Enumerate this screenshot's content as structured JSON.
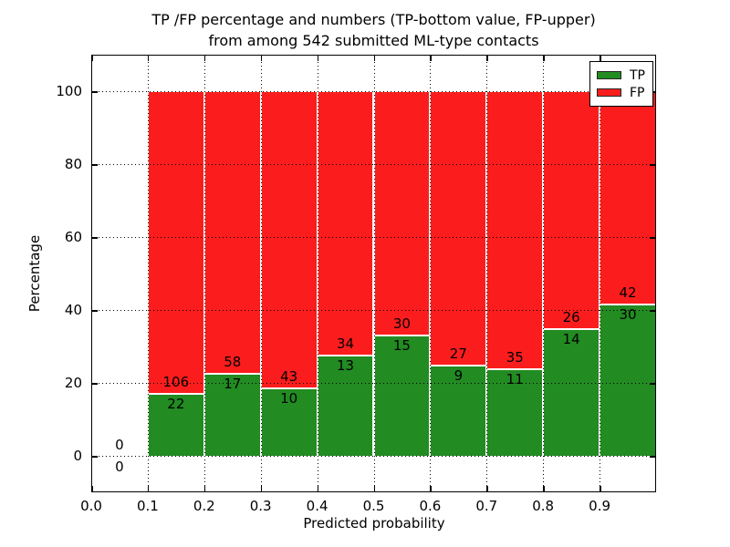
{
  "title": {
    "line1": "TP /FP percentage and numbers (TP-bottom value, FP-upper)",
    "line2": "from among 542 submitted ML-type contacts"
  },
  "axes": {
    "x_label": "Predicted probability",
    "y_label": "Percentage",
    "x_tick_labels": [
      "0.0",
      "0.1",
      "0.2",
      "0.3",
      "0.4",
      "0.5",
      "0.6",
      "0.7",
      "0.8",
      "0.9"
    ],
    "x_tick_values": [
      0.0,
      0.1,
      0.2,
      0.3,
      0.4,
      0.5,
      0.6,
      0.7,
      0.8,
      0.9
    ],
    "y_tick_labels": [
      "0",
      "20",
      "40",
      "60",
      "80",
      "100"
    ],
    "y_tick_values": [
      0,
      20,
      40,
      60,
      80,
      100
    ]
  },
  "legend": {
    "position": "top-right",
    "items": [
      {
        "label": "TP",
        "color": "#228b22"
      },
      {
        "label": "FP",
        "color": "#fb1d1d"
      }
    ]
  },
  "colors": {
    "tp": "#228b22",
    "fp": "#fb1d1d",
    "bar_edge": "#ffffff",
    "grid": "#000000",
    "text": "#000000"
  },
  "chart_data": {
    "type": "bar",
    "stacked": true,
    "normalized_to": 100,
    "title": "TP /FP percentage and numbers (TP-bottom value, FP-upper) from among 542 submitted ML-type contacts",
    "xlabel": "Predicted probability",
    "ylabel": "Percentage",
    "xlim": [
      0.0,
      1.0
    ],
    "ylim": [
      -10,
      110
    ],
    "grid": true,
    "series_names": [
      "TP",
      "FP"
    ],
    "total_contacts": 542,
    "bins": [
      {
        "x0": 0.0,
        "x1": 0.1,
        "tp": 0,
        "fp": 0
      },
      {
        "x0": 0.1,
        "x1": 0.2,
        "tp": 22,
        "fp": 106
      },
      {
        "x0": 0.2,
        "x1": 0.3,
        "tp": 17,
        "fp": 58
      },
      {
        "x0": 0.3,
        "x1": 0.4,
        "tp": 10,
        "fp": 43
      },
      {
        "x0": 0.4,
        "x1": 0.5,
        "tp": 13,
        "fp": 34
      },
      {
        "x0": 0.5,
        "x1": 0.6,
        "tp": 15,
        "fp": 30
      },
      {
        "x0": 0.6,
        "x1": 0.7,
        "tp": 9,
        "fp": 27
      },
      {
        "x0": 0.7,
        "x1": 0.8,
        "tp": 11,
        "fp": 35
      },
      {
        "x0": 0.8,
        "x1": 0.9,
        "tp": 14,
        "fp": 26
      },
      {
        "x0": 0.9,
        "x1": 1.0,
        "tp": 30,
        "fp": 42
      }
    ]
  }
}
